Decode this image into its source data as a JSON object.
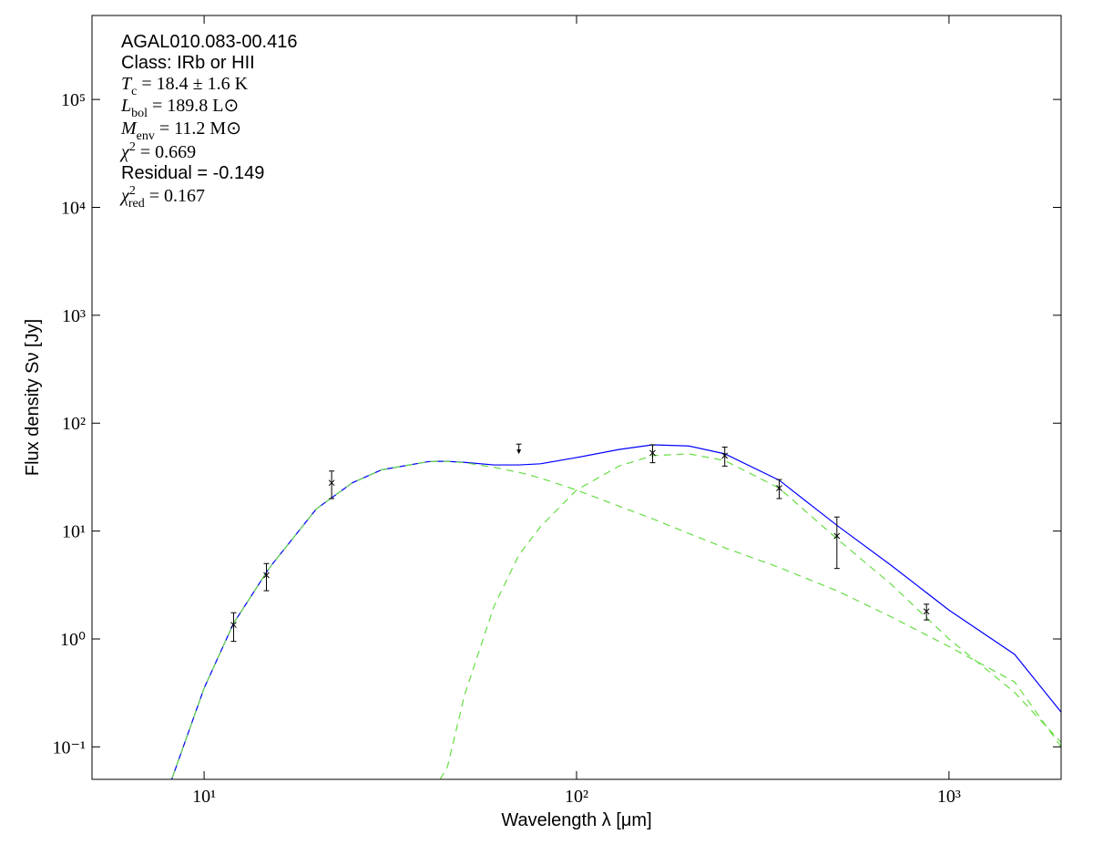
{
  "chart_data": {
    "type": "sed",
    "x_label": "Wavelength λ [μm]",
    "y_label": "Flux density Sν [Jy]",
    "x_log": true,
    "y_log": true,
    "xlim": [
      5,
      2000
    ],
    "ylim": [
      0.05,
      600000
    ],
    "xticks": [
      {
        "value": 10,
        "label": "10¹"
      },
      {
        "value": 100,
        "label": "10²"
      },
      {
        "value": 1000,
        "label": "10³"
      }
    ],
    "yticks": [
      {
        "value": 0.1,
        "label": "10⁻¹"
      },
      {
        "value": 1,
        "label": "10⁰"
      },
      {
        "value": 10,
        "label": "10¹"
      },
      {
        "value": 100,
        "label": "10²"
      },
      {
        "value": 1000,
        "label": "10³"
      },
      {
        "value": 10000,
        "label": "10⁴"
      },
      {
        "value": 100000,
        "label": "10⁵"
      }
    ],
    "annotations": [
      {
        "text": "AGAL010.083-00.416",
        "style": "sans"
      },
      {
        "text": "Class: IRb or HII",
        "style": "sans"
      },
      {
        "sym": "T",
        "sub": "c",
        "text": " = 18.4 ± 1.6 K",
        "style": "math"
      },
      {
        "sym": "L",
        "sub": "bol",
        "text": " = 189.8 L⊙",
        "style": "math"
      },
      {
        "sym": "M",
        "sub": "env",
        "text": " = 11.2 M⊙",
        "style": "math"
      },
      {
        "sym": "χ",
        "sup": "2",
        "text": " = 0.669",
        "style": "math"
      },
      {
        "text": "Residual = -0.149",
        "style": "sans"
      },
      {
        "sym": "χ",
        "sup": "2",
        "sub": "red",
        "text": " = 0.167",
        "style": "math"
      }
    ],
    "x": [
      8,
      10,
      12,
      15,
      20,
      25,
      30,
      40,
      43,
      45,
      50,
      60,
      70,
      80,
      100,
      130,
      160,
      200,
      250,
      350,
      500,
      700,
      1000,
      1500,
      2000
    ],
    "series": [
      {
        "color": "#0000ff",
        "dash": false,
        "values": [
          0.04,
          0.35,
          1.4,
          4.6,
          16,
          28,
          37,
          44,
          44.25,
          44.3,
          43.3,
          41,
          41,
          42,
          48,
          57,
          63,
          61.5,
          52,
          29.6,
          11.3,
          4.8,
          1.85,
          0.72,
          0.21
        ]
      },
      {
        "color": "#66dd44",
        "dash": true,
        "values": [
          0.04,
          0.35,
          1.4,
          4.6,
          16,
          28,
          37,
          44,
          44.2,
          44.2,
          43,
          39,
          35,
          31,
          24,
          17,
          13,
          9.5,
          7,
          4.6,
          2.8,
          1.6,
          0.85,
          0.4,
          0.1
        ]
      },
      {
        "color": "#66dd44",
        "dash": true,
        "values": [
          null,
          null,
          null,
          null,
          null,
          null,
          null,
          null,
          0.05,
          0.065,
          0.3,
          2,
          6,
          11,
          24,
          40,
          50,
          52,
          45,
          25,
          8.5,
          3.2,
          1,
          0.32,
          0.11
        ]
      }
    ],
    "points": {
      "x": [
        12,
        14.7,
        22,
        160,
        250,
        350,
        500,
        870
      ],
      "values": [
        1.35,
        3.9,
        28,
        53,
        50,
        25,
        9,
        1.8
      ],
      "errors": [
        0.4,
        1.1,
        8,
        10,
        10,
        5,
        4.5,
        0.3
      ]
    },
    "upper_limits": {
      "x": [
        70
      ],
      "values": [
        64
      ]
    }
  }
}
